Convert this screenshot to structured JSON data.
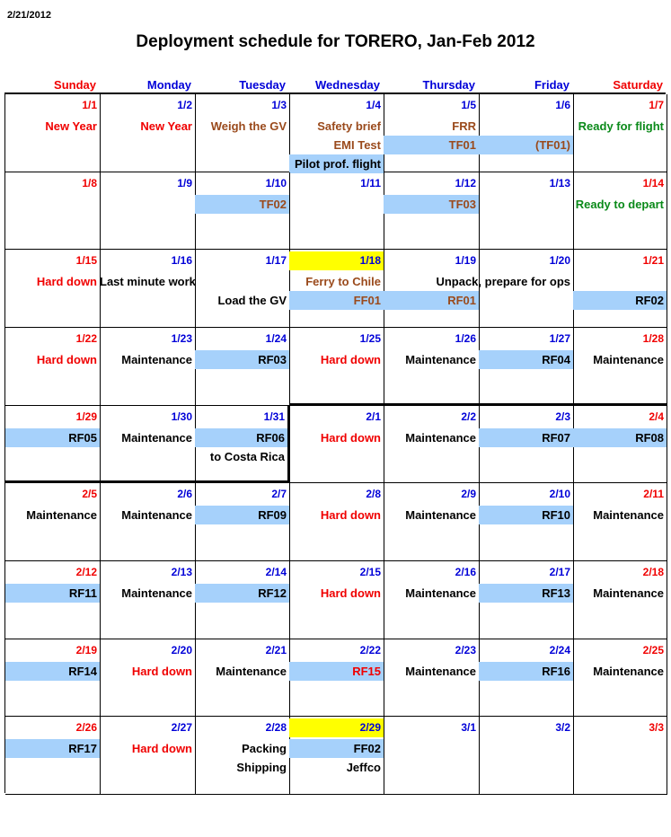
{
  "header": {
    "date": "2/21/2012",
    "title": "Deployment schedule for TORERO, Jan-Feb 2012"
  },
  "days": [
    "Sunday",
    "Monday",
    "Tuesday",
    "Wednesday",
    "Thursday",
    "Friday",
    "Saturday"
  ],
  "colors": {
    "red": "#f00000",
    "blue": "#0000d8",
    "brown": "#9a4a1c",
    "green": "#0b8a1a",
    "highlight_blue": "#a6d1fb",
    "highlight_yellow": "#ffff00"
  },
  "weeks": [
    [
      {
        "date": "1/1",
        "events": [
          {
            "text": "New Year",
            "color": "red"
          }
        ]
      },
      {
        "date": "1/2",
        "events": [
          {
            "text": "New Year",
            "color": "red"
          }
        ]
      },
      {
        "date": "1/3",
        "events": [
          {
            "text": "Weigh the GV",
            "color": "brown"
          }
        ]
      },
      {
        "date": "1/4",
        "events": [
          {
            "text": "Safety brief",
            "color": "brown"
          },
          {
            "text": "EMI Test",
            "color": "brown"
          },
          {
            "text": "Pilot prof. flight",
            "color": "black",
            "hl": "blue"
          }
        ]
      },
      {
        "date": "1/5",
        "events": [
          {
            "text": "FRR",
            "color": "brown"
          },
          {
            "text": "TF01",
            "color": "brown",
            "hl": "blue"
          }
        ]
      },
      {
        "date": "1/6",
        "events": [
          {
            "text": "",
            "color": "black"
          },
          {
            "text": "(TF01)",
            "color": "brown",
            "hl": "blue"
          }
        ]
      },
      {
        "date": "1/7",
        "events": [
          {
            "text": "Ready for flight",
            "color": "green"
          }
        ]
      }
    ],
    [
      {
        "date": "1/8",
        "events": []
      },
      {
        "date": "1/9",
        "events": []
      },
      {
        "date": "1/10",
        "events": [
          {
            "text": "TF02",
            "color": "brown",
            "hl": "blue"
          }
        ]
      },
      {
        "date": "1/11",
        "events": []
      },
      {
        "date": "1/12",
        "events": [
          {
            "text": "TF03",
            "color": "brown",
            "hl": "blue"
          }
        ]
      },
      {
        "date": "1/13",
        "events": []
      },
      {
        "date": "1/14",
        "events": [
          {
            "text": "Ready to depart",
            "color": "green"
          }
        ]
      }
    ],
    [
      {
        "date": "1/15",
        "events": [
          {
            "text": "Hard down",
            "color": "red"
          }
        ]
      },
      {
        "date": "1/16",
        "events": [
          {
            "text": "Last minute work",
            "color": "black"
          }
        ]
      },
      {
        "date": "1/17",
        "events": [
          {
            "text": "",
            "color": "black"
          },
          {
            "text": "Load the GV",
            "color": "black"
          }
        ]
      },
      {
        "date": "1/18",
        "date_hl": "yellow",
        "events": [
          {
            "text": "Ferry to Chile",
            "color": "brown"
          },
          {
            "text": "FF01",
            "color": "brown",
            "hl": "blue"
          }
        ]
      },
      {
        "date": "1/19",
        "events": [
          {
            "text": "",
            "color": "black"
          },
          {
            "text": "RF01",
            "color": "brown",
            "hl": "blue"
          }
        ]
      },
      {
        "date": "1/20",
        "events": [
          {
            "text": "Unpack, prepare for ops",
            "color": "black",
            "overflow": true
          }
        ]
      },
      {
        "date": "1/21",
        "events": [
          {
            "text": "",
            "color": "black"
          },
          {
            "text": "RF02",
            "color": "black",
            "hl": "blue"
          }
        ]
      }
    ],
    [
      {
        "date": "1/22",
        "events": [
          {
            "text": "Hard down",
            "color": "red"
          }
        ]
      },
      {
        "date": "1/23",
        "events": [
          {
            "text": "Maintenance",
            "color": "black"
          }
        ]
      },
      {
        "date": "1/24",
        "events": [
          {
            "text": "RF03",
            "color": "black",
            "hl": "blue"
          }
        ]
      },
      {
        "date": "1/25",
        "events": [
          {
            "text": "Hard down",
            "color": "red"
          }
        ]
      },
      {
        "date": "1/26",
        "events": [
          {
            "text": "Maintenance",
            "color": "black"
          }
        ]
      },
      {
        "date": "1/27",
        "events": [
          {
            "text": "RF04",
            "color": "black",
            "hl": "blue"
          }
        ]
      },
      {
        "date": "1/28",
        "events": [
          {
            "text": "Maintenance",
            "color": "black"
          }
        ]
      }
    ],
    [
      {
        "date": "1/29",
        "events": [
          {
            "text": "RF05",
            "color": "black",
            "hl": "blue"
          }
        ]
      },
      {
        "date": "1/30",
        "events": [
          {
            "text": "Maintenance",
            "color": "black"
          }
        ]
      },
      {
        "date": "1/31",
        "events": [
          {
            "text": "RF06",
            "color": "black",
            "hl": "blue"
          },
          {
            "text": "to Costa Rica",
            "color": "black"
          }
        ]
      },
      {
        "date": "2/1",
        "events": [
          {
            "text": "Hard down",
            "color": "red"
          }
        ]
      },
      {
        "date": "2/2",
        "events": [
          {
            "text": "Maintenance",
            "color": "black"
          }
        ]
      },
      {
        "date": "2/3",
        "events": [
          {
            "text": "RF07",
            "color": "black",
            "hl": "blue"
          }
        ]
      },
      {
        "date": "2/4",
        "events": [
          {
            "text": "RF08",
            "color": "black",
            "hl": "blue"
          }
        ]
      }
    ],
    [
      {
        "date": "2/5",
        "events": [
          {
            "text": "Maintenance",
            "color": "black"
          }
        ]
      },
      {
        "date": "2/6",
        "events": [
          {
            "text": "Maintenance",
            "color": "black"
          }
        ]
      },
      {
        "date": "2/7",
        "events": [
          {
            "text": "RF09",
            "color": "black",
            "hl": "blue"
          }
        ]
      },
      {
        "date": "2/8",
        "events": [
          {
            "text": "Hard down",
            "color": "red"
          }
        ]
      },
      {
        "date": "2/9",
        "events": [
          {
            "text": "Maintenance",
            "color": "black"
          }
        ]
      },
      {
        "date": "2/10",
        "events": [
          {
            "text": "RF10",
            "color": "black",
            "hl": "blue"
          }
        ]
      },
      {
        "date": "2/11",
        "events": [
          {
            "text": "Maintenance",
            "color": "black"
          }
        ]
      }
    ],
    [
      {
        "date": "2/12",
        "events": [
          {
            "text": "RF11",
            "color": "black",
            "hl": "blue"
          }
        ]
      },
      {
        "date": "2/13",
        "events": [
          {
            "text": "Maintenance",
            "color": "black"
          }
        ]
      },
      {
        "date": "2/14",
        "events": [
          {
            "text": "RF12",
            "color": "black",
            "hl": "blue"
          }
        ]
      },
      {
        "date": "2/15",
        "events": [
          {
            "text": "Hard down",
            "color": "red"
          }
        ]
      },
      {
        "date": "2/16",
        "events": [
          {
            "text": "Maintenance",
            "color": "black"
          }
        ]
      },
      {
        "date": "2/17",
        "events": [
          {
            "text": "RF13",
            "color": "black",
            "hl": "blue"
          }
        ]
      },
      {
        "date": "2/18",
        "events": [
          {
            "text": "Maintenance",
            "color": "black"
          }
        ]
      }
    ],
    [
      {
        "date": "2/19",
        "events": [
          {
            "text": "RF14",
            "color": "black",
            "hl": "blue"
          }
        ]
      },
      {
        "date": "2/20",
        "events": [
          {
            "text": "Hard down",
            "color": "red"
          }
        ]
      },
      {
        "date": "2/21",
        "events": [
          {
            "text": "Maintenance",
            "color": "black"
          }
        ]
      },
      {
        "date": "2/22",
        "events": [
          {
            "text": "RF15",
            "color": "red",
            "hl": "blue"
          }
        ]
      },
      {
        "date": "2/23",
        "events": [
          {
            "text": "Maintenance",
            "color": "black"
          }
        ]
      },
      {
        "date": "2/24",
        "events": [
          {
            "text": "RF16",
            "color": "black",
            "hl": "blue"
          }
        ]
      },
      {
        "date": "2/25",
        "events": [
          {
            "text": "Maintenance",
            "color": "black"
          }
        ]
      }
    ],
    [
      {
        "date": "2/26",
        "events": [
          {
            "text": "RF17",
            "color": "black",
            "hl": "blue"
          }
        ]
      },
      {
        "date": "2/27",
        "events": [
          {
            "text": "Hard down",
            "color": "red"
          }
        ]
      },
      {
        "date": "2/28",
        "events": [
          {
            "text": "Packing",
            "color": "black"
          },
          {
            "text": "Shipping",
            "color": "black"
          }
        ]
      },
      {
        "date": "2/29",
        "date_hl": "yellow",
        "events": [
          {
            "text": "FF02",
            "color": "black",
            "hl": "blue"
          },
          {
            "text": "Jeffco",
            "color": "black"
          }
        ]
      },
      {
        "date": "3/1",
        "events": []
      },
      {
        "date": "3/2",
        "events": []
      },
      {
        "date": "3/3",
        "events": []
      }
    ]
  ]
}
